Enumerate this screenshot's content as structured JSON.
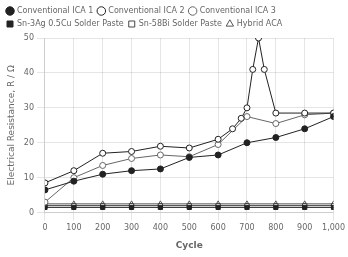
{
  "chart_data": {
    "type": "line",
    "xlabel": "Cycle",
    "ylabel": "Electrical Resistance, R / Ω",
    "xlim": [
      0,
      1000
    ],
    "ylim": [
      0,
      50
    ],
    "xticks": [
      0,
      100,
      200,
      300,
      400,
      500,
      600,
      700,
      800,
      900,
      1000
    ],
    "yticks": [
      0,
      10,
      20,
      30,
      40,
      50
    ],
    "grid": true,
    "legend": "upper left",
    "series": [
      {
        "name": "Conventional ICA 1",
        "color": "#222222",
        "marker": "circle",
        "x": [
          0,
          100,
          200,
          300,
          400,
          500,
          600,
          700,
          800,
          900,
          1000
        ],
        "values": [
          6.5,
          9.0,
          11.0,
          12.0,
          12.5,
          15.8,
          16.5,
          20.0,
          21.5,
          24.0,
          27.5
        ]
      },
      {
        "name": "Conventional ICA 2",
        "color": "#222222",
        "marker": "circle-open",
        "x": [
          0,
          100,
          200,
          300,
          400,
          500,
          600,
          650,
          680,
          700,
          720,
          740,
          760,
          800,
          900,
          1000
        ],
        "values": [
          8.5,
          12.0,
          17.0,
          17.5,
          19.0,
          18.5,
          21.0,
          24.0,
          27.0,
          30.0,
          41.0,
          50.0,
          41.0,
          28.5,
          28.5,
          28.5
        ]
      },
      {
        "name": "Conventional ICA 3",
        "color": "#666666",
        "marker": "circle-open",
        "x": [
          0,
          100,
          200,
          300,
          400,
          500,
          600,
          700,
          800,
          900,
          1000
        ],
        "values": [
          3.0,
          10.0,
          13.5,
          15.5,
          16.5,
          16.0,
          19.5,
          27.5,
          25.5,
          28.0,
          28.5
        ]
      },
      {
        "name": "Sn-3Ag 0.5Cu Solder Paste",
        "color": "#222222",
        "marker": "square",
        "x": [
          0,
          100,
          200,
          300,
          400,
          500,
          600,
          700,
          800,
          900,
          1000
        ],
        "values": [
          1.5,
          1.5,
          1.5,
          1.5,
          1.5,
          1.5,
          1.5,
          1.5,
          1.5,
          1.5,
          1.5
        ]
      },
      {
        "name": "Sn-58Bi Solder Paste",
        "color": "#444444",
        "marker": "square-open",
        "x": [
          0,
          100,
          200,
          300,
          400,
          500,
          600,
          700,
          800,
          900,
          1000
        ],
        "values": [
          2.0,
          2.0,
          2.0,
          2.0,
          2.0,
          2.0,
          2.0,
          2.0,
          2.0,
          2.0,
          2.0
        ]
      },
      {
        "name": "Hybrid ACA",
        "color": "#555555",
        "marker": "triangle-open",
        "x": [
          0,
          100,
          200,
          300,
          400,
          500,
          600,
          700,
          800,
          900,
          1000
        ],
        "values": [
          2.5,
          2.5,
          2.5,
          2.5,
          2.5,
          2.5,
          2.5,
          2.5,
          2.5,
          2.5,
          2.5
        ]
      }
    ]
  }
}
